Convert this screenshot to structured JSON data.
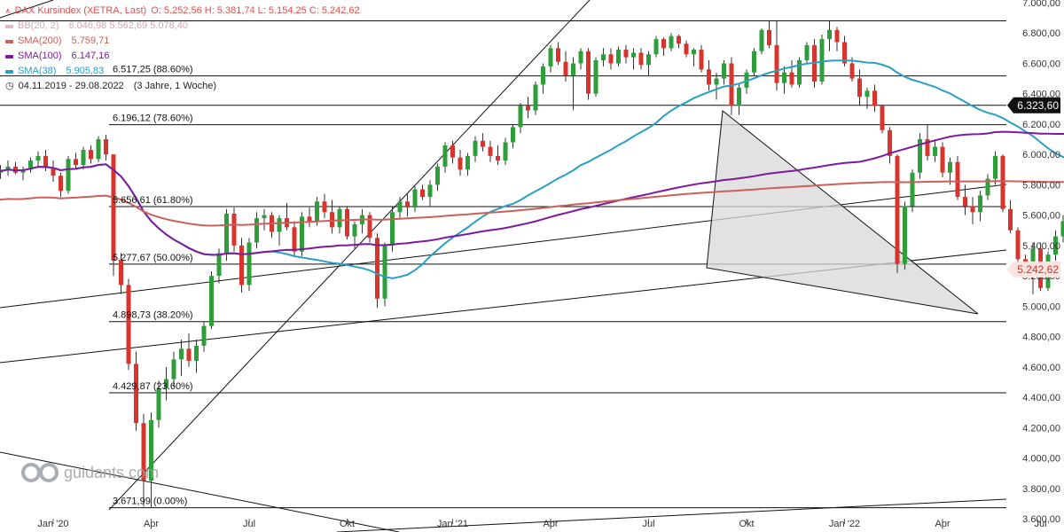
{
  "legend": {
    "title": "DAX Kursindex (XETRA, Last)",
    "title_values": "O: 5.252,56  H: 5.381,74  L: 5.154,25  C: 5.242,62",
    "title_color": "#d9534f",
    "bb": {
      "label": "BB(20, 2)",
      "values": "6.046,98  5.562,69  5.078,40",
      "color": "#e6b8c4"
    },
    "sma200": {
      "label": "SMA(200)",
      "value": "5.759,71",
      "color": "#c9605a"
    },
    "sma100": {
      "label": "SMA(100)",
      "value": "6.147,16",
      "color": "#7d1a9e"
    },
    "sma38": {
      "label": "SMA(38)",
      "value": "5.905,83",
      "color": "#2a9fc4"
    },
    "range": "04.11.2019 - 29.08.2022",
    "interval": "(3 Jahre, 1 Woche)"
  },
  "watermark": "guidants.com",
  "chart_data": {
    "type": "candlestick",
    "ylim": [
      3600,
      7000
    ],
    "y_ticks": [
      "3.600,00",
      "3.800,00",
      "4.000,00",
      "4.200,00",
      "4.400,00",
      "4.600,00",
      "4.800,00",
      "5.000,00",
      "5.200,00",
      "5.400,00",
      "5.600,00",
      "5.800,00",
      "6.000,00",
      "6.200,00",
      "6.400,00",
      "6.600,00",
      "6.800,00",
      "7.000,00"
    ],
    "y_tick_values": [
      3600,
      3800,
      4000,
      4200,
      4400,
      4600,
      4800,
      5000,
      5200,
      5400,
      5600,
      5800,
      6000,
      6200,
      6400,
      6600,
      6800,
      7000
    ],
    "x_ticks": [
      {
        "label": "Jan '20",
        "week": 8
      },
      {
        "label": "Apr",
        "week": 21
      },
      {
        "label": "Jul",
        "week": 34
      },
      {
        "label": "Okt",
        "week": 47
      },
      {
        "label": "Jan '21",
        "week": 61
      },
      {
        "label": "Apr",
        "week": 74
      },
      {
        "label": "Jul",
        "week": 87
      },
      {
        "label": "Okt",
        "week": 100
      },
      {
        "label": "Jan '22",
        "week": 113
      },
      {
        "label": "Apr",
        "week": 126
      },
      {
        "label": "Jul",
        "week": 139
      }
    ],
    "fib_levels": [
      {
        "label": "6.517,25 (88.60%)",
        "value": 6517.25
      },
      {
        "label": "6.196,12 (78.60%)",
        "value": 6196.12
      },
      {
        "label": "5.656,61 (61.80%)",
        "value": 5656.61
      },
      {
        "label": "5.277,67 (50.00%)",
        "value": 5277.67
      },
      {
        "label": "4.898,73 (38.20%)",
        "value": 4898.73
      },
      {
        "label": "4.429,87 (23.60%)",
        "value": 4429.87
      },
      {
        "label": "3.671,99 (0.00%)",
        "value": 3671.99
      }
    ],
    "top_level": 6880,
    "price_badges": [
      {
        "label": "6.323,60",
        "value": 6323.6,
        "bg": "#111111",
        "fg": "#ffffff"
      },
      {
        "label": "5.242,62",
        "value": 5242.62,
        "bg": "#fbe3e1",
        "fg": "#c0392b"
      }
    ],
    "candles": [
      [
        5850,
        5910,
        5800,
        5880
      ],
      [
        5880,
        5930,
        5840,
        5900
      ],
      [
        5900,
        5960,
        5860,
        5920
      ],
      [
        5920,
        5950,
        5870,
        5880
      ],
      [
        5880,
        5920,
        5830,
        5900
      ],
      [
        5900,
        5980,
        5880,
        5960
      ],
      [
        5960,
        6020,
        5920,
        5990
      ],
      [
        5990,
        6030,
        5890,
        5910
      ],
      [
        5910,
        5960,
        5820,
        5860
      ],
      [
        5860,
        5880,
        5720,
        5760
      ],
      [
        5760,
        5990,
        5740,
        5970
      ],
      [
        5970,
        6010,
        5900,
        5930
      ],
      [
        5930,
        6050,
        5900,
        6030
      ],
      [
        6030,
        6060,
        5940,
        5970
      ],
      [
        5970,
        6120,
        5950,
        6100
      ],
      [
        6100,
        6130,
        5960,
        6000
      ],
      [
        6000,
        6000,
        5200,
        5300
      ],
      [
        5300,
        5350,
        5080,
        5140
      ],
      [
        5140,
        5180,
        4580,
        4620
      ],
      [
        4620,
        4700,
        4180,
        4230
      ],
      [
        4230,
        4290,
        3680,
        3850
      ],
      [
        3850,
        4300,
        3670,
        4250
      ],
      [
        4250,
        4510,
        4200,
        4460
      ],
      [
        4460,
        4600,
        4380,
        4520
      ],
      [
        4520,
        4700,
        4470,
        4650
      ],
      [
        4650,
        4780,
        4540,
        4720
      ],
      [
        4720,
        4820,
        4600,
        4640
      ],
      [
        4640,
        4780,
        4560,
        4740
      ],
      [
        4740,
        4900,
        4700,
        4870
      ],
      [
        4870,
        5230,
        4850,
        5200
      ],
      [
        5200,
        5380,
        5150,
        5350
      ],
      [
        5350,
        5640,
        5300,
        5610
      ],
      [
        5610,
        5650,
        5360,
        5400
      ],
      [
        5400,
        5450,
        5090,
        5140
      ],
      [
        5140,
        5450,
        5100,
        5420
      ],
      [
        5420,
        5620,
        5380,
        5580
      ],
      [
        5580,
        5640,
        5500,
        5600
      ],
      [
        5600,
        5620,
        5450,
        5490
      ],
      [
        5490,
        5600,
        5400,
        5580
      ],
      [
        5580,
        5680,
        5500,
        5520
      ],
      [
        5520,
        5560,
        5330,
        5360
      ],
      [
        5360,
        5620,
        5330,
        5590
      ],
      [
        5590,
        5650,
        5520,
        5560
      ],
      [
        5560,
        5720,
        5530,
        5690
      ],
      [
        5690,
        5740,
        5580,
        5620
      ],
      [
        5620,
        5700,
        5480,
        5520
      ],
      [
        5520,
        5660,
        5480,
        5640
      ],
      [
        5640,
        5660,
        5440,
        5460
      ],
      [
        5460,
        5560,
        5380,
        5540
      ],
      [
        5540,
        5640,
        5480,
        5600
      ],
      [
        5600,
        5620,
        5420,
        5450
      ],
      [
        5450,
        5480,
        4990,
        5050
      ],
      [
        5050,
        5420,
        5000,
        5400
      ],
      [
        5400,
        5660,
        5360,
        5620
      ],
      [
        5620,
        5720,
        5580,
        5690
      ],
      [
        5690,
        5740,
        5590,
        5650
      ],
      [
        5650,
        5790,
        5620,
        5770
      ],
      [
        5770,
        5800,
        5700,
        5720
      ],
      [
        5720,
        5830,
        5660,
        5800
      ],
      [
        5800,
        5940,
        5760,
        5920
      ],
      [
        5920,
        6080,
        5880,
        6060
      ],
      [
        6060,
        6090,
        5940,
        5980
      ],
      [
        5980,
        6030,
        5860,
        5900
      ],
      [
        5900,
        6010,
        5860,
        5990
      ],
      [
        5990,
        6120,
        5950,
        6090
      ],
      [
        6090,
        6140,
        6020,
        6050
      ],
      [
        6050,
        6090,
        5950,
        5990
      ],
      [
        5990,
        6060,
        5930,
        5960
      ],
      [
        5960,
        6110,
        5930,
        6080
      ],
      [
        6080,
        6200,
        6040,
        6180
      ],
      [
        6180,
        6340,
        6140,
        6320
      ],
      [
        6320,
        6380,
        6240,
        6290
      ],
      [
        6290,
        6480,
        6260,
        6460
      ],
      [
        6460,
        6600,
        6400,
        6580
      ],
      [
        6580,
        6720,
        6540,
        6700
      ],
      [
        6700,
        6740,
        6590,
        6610
      ],
      [
        6610,
        6680,
        6480,
        6520
      ],
      [
        6520,
        6640,
        6290,
        6600
      ],
      [
        6600,
        6700,
        6560,
        6680
      ],
      [
        6680,
        6700,
        6360,
        6400
      ],
      [
        6400,
        6640,
        6380,
        6620
      ],
      [
        6620,
        6700,
        6580,
        6660
      ],
      [
        6660,
        6700,
        6560,
        6600
      ],
      [
        6600,
        6710,
        6580,
        6690
      ],
      [
        6690,
        6720,
        6600,
        6640
      ],
      [
        6640,
        6700,
        6560,
        6670
      ],
      [
        6670,
        6700,
        6560,
        6590
      ],
      [
        6590,
        6680,
        6520,
        6660
      ],
      [
        6660,
        6780,
        6640,
        6760
      ],
      [
        6760,
        6770,
        6650,
        6700
      ],
      [
        6700,
        6800,
        6680,
        6780
      ],
      [
        6780,
        6790,
        6700,
        6730
      ],
      [
        6730,
        6750,
        6640,
        6660
      ],
      [
        6660,
        6700,
        6580,
        6690
      ],
      [
        6690,
        6720,
        6540,
        6560
      ],
      [
        6560,
        6620,
        6420,
        6460
      ],
      [
        6460,
        6540,
        6360,
        6500
      ],
      [
        6500,
        6620,
        6460,
        6600
      ],
      [
        6600,
        6640,
        6260,
        6320
      ],
      [
        6320,
        6460,
        6260,
        6440
      ],
      [
        6440,
        6560,
        6400,
        6540
      ],
      [
        6540,
        6700,
        6520,
        6680
      ],
      [
        6680,
        6830,
        6660,
        6820
      ],
      [
        6820,
        6880,
        6700,
        6720
      ],
      [
        6720,
        6880,
        6420,
        6470
      ],
      [
        6470,
        6580,
        6400,
        6540
      ],
      [
        6540,
        6620,
        6440,
        6460
      ],
      [
        6460,
        6640,
        6440,
        6620
      ],
      [
        6620,
        6740,
        6600,
        6720
      ],
      [
        6720,
        6760,
        6440,
        6480
      ],
      [
        6480,
        6790,
        6460,
        6760
      ],
      [
        6760,
        6880,
        6680,
        6820
      ],
      [
        6820,
        6840,
        6680,
        6740
      ],
      [
        6740,
        6780,
        6580,
        6600
      ],
      [
        6600,
        6640,
        6480,
        6500
      ],
      [
        6500,
        6560,
        6320,
        6380
      ],
      [
        6380,
        6440,
        6300,
        6420
      ],
      [
        6420,
        6460,
        6280,
        6320
      ],
      [
        6320,
        6320,
        6140,
        6160
      ],
      [
        6160,
        6180,
        5940,
        5990
      ],
      [
        5990,
        6000,
        5220,
        5280
      ],
      [
        5280,
        5690,
        5240,
        5660
      ],
      [
        5660,
        5900,
        5620,
        5880
      ],
      [
        5880,
        6140,
        5840,
        6100
      ],
      [
        6100,
        6200,
        5960,
        5990
      ],
      [
        5990,
        6090,
        5950,
        6050
      ],
      [
        6050,
        6080,
        5850,
        5880
      ],
      [
        5880,
        5980,
        5800,
        5950
      ],
      [
        5950,
        5990,
        5700,
        5720
      ],
      [
        5720,
        5800,
        5600,
        5660
      ],
      [
        5660,
        5720,
        5540,
        5620
      ],
      [
        5620,
        5760,
        5560,
        5730
      ],
      [
        5730,
        5870,
        5700,
        5840
      ],
      [
        5840,
        6020,
        5800,
        5990
      ],
      [
        5990,
        6000,
        5620,
        5640
      ],
      [
        5640,
        5700,
        5480,
        5500
      ],
      [
        5500,
        5520,
        5280,
        5310
      ],
      [
        5310,
        5340,
        5190,
        5210
      ],
      [
        5210,
        5420,
        5080,
        5380
      ],
      [
        5380,
        5420,
        5100,
        5120
      ],
      [
        5120,
        5360,
        5100,
        5340
      ],
      [
        5340,
        5500,
        5300,
        5460
      ],
      [
        5460,
        5600,
        5420,
        5560
      ],
      [
        5560,
        5680,
        5530,
        5640
      ],
      [
        5640,
        5660,
        5420,
        5450
      ],
      [
        5450,
        5480,
        5360,
        5380
      ],
      [
        5252.56,
        5381.74,
        5154.25,
        5242.62
      ]
    ]
  }
}
